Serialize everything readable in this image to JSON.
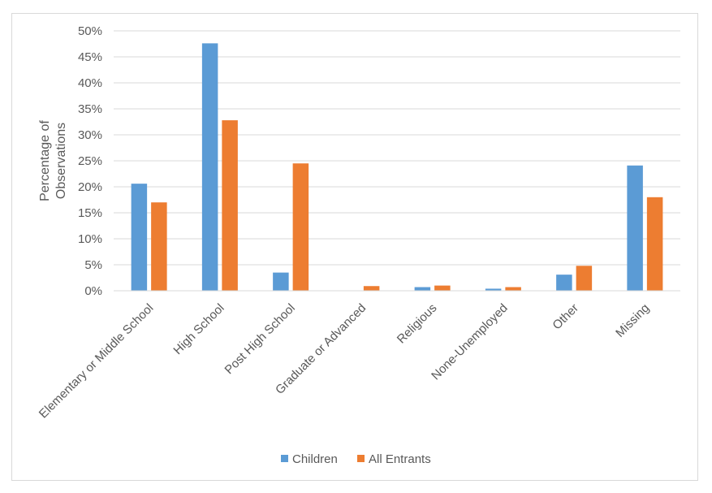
{
  "chart_data": {
    "type": "bar",
    "title": "",
    "xlabel": "",
    "ylabel": "Percentage of Observations",
    "ylabel_lines": [
      "Percentage of",
      "Observations"
    ],
    "ylim": [
      0,
      0.5
    ],
    "yticks": [
      "0%",
      "5%",
      "10%",
      "15%",
      "20%",
      "25%",
      "30%",
      "35%",
      "40%",
      "45%",
      "50%"
    ],
    "categories": [
      "Elementary or Middle School",
      "High School",
      "Post High School",
      "Graduate or Advanced",
      "Religious",
      "None-Unemployed",
      "Other",
      "Missing"
    ],
    "series": [
      {
        "name": "Children",
        "color": "#5b9bd5",
        "values": [
          0.206,
          0.476,
          0.035,
          0.0,
          0.007,
          0.004,
          0.031,
          0.241
        ]
      },
      {
        "name": "All Entrants",
        "color": "#ed7d31",
        "values": [
          0.17,
          0.328,
          0.245,
          0.009,
          0.01,
          0.007,
          0.048,
          0.18
        ]
      }
    ],
    "grid": true,
    "legend": "bottom"
  }
}
